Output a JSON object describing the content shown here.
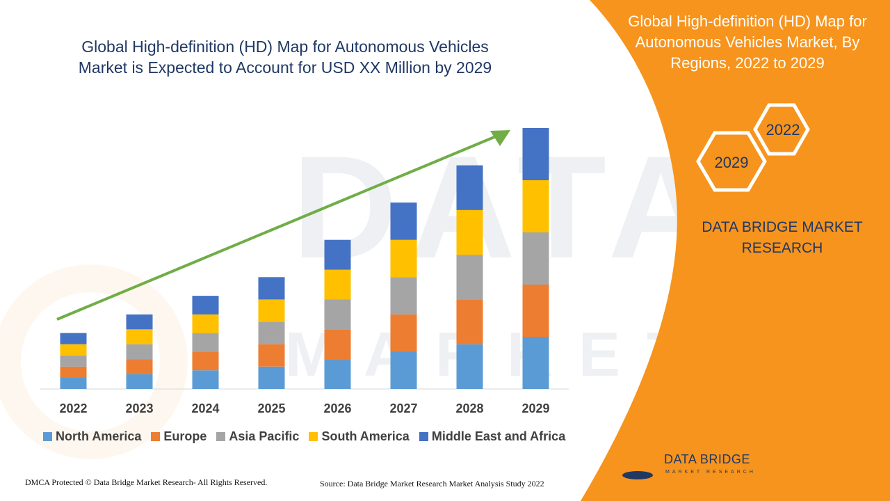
{
  "title": {
    "line1": "Global High-definition (HD) Map for Autonomous Vehicles",
    "line2": "Market is Expected to Account for USD XX Million by 2029"
  },
  "panel": {
    "title": "Global High-definition (HD) Map for Autonomous Vehicles Market, By Regions, 2022 to 2029",
    "hex_year_start": "2022",
    "hex_year_end": "2029",
    "brand_line1": "DATA BRIDGE MARKET",
    "brand_line2": "RESEARCH",
    "accent_color": "#f7941d"
  },
  "footer": {
    "copyright": "DMCA Protected © Data Bridge Market Research- All Rights Reserved.",
    "source": "Source: Data Bridge Market Research Market Analysis Study 2022"
  },
  "logo": {
    "name": "DATA BRIDGE",
    "subtitle": "MARKET RESEARCH"
  },
  "chart_data": {
    "type": "bar",
    "stacked": true,
    "categories": [
      "2022",
      "2023",
      "2024",
      "2025",
      "2026",
      "2027",
      "2028",
      "2029"
    ],
    "series": [
      {
        "name": "North America",
        "color": "#5b9bd5",
        "values": [
          3.0,
          4.0,
          5.0,
          6.0,
          8.0,
          10.0,
          12.0,
          14.0
        ]
      },
      {
        "name": "Europe",
        "color": "#ed7d31",
        "values": [
          3.0,
          4.0,
          5.0,
          6.0,
          8.0,
          10.0,
          12.0,
          14.0
        ]
      },
      {
        "name": "Asia Pacific",
        "color": "#a5a5a5",
        "values": [
          3.0,
          4.0,
          5.0,
          6.0,
          8.0,
          10.0,
          12.0,
          14.0
        ]
      },
      {
        "name": "South America",
        "color": "#ffc000",
        "values": [
          3.0,
          4.0,
          5.0,
          6.0,
          8.0,
          10.0,
          12.0,
          14.0
        ]
      },
      {
        "name": "Middle East and Africa",
        "color": "#4472c4",
        "values": [
          3.0,
          4.0,
          5.0,
          6.0,
          8.0,
          10.0,
          12.0,
          14.0
        ]
      }
    ],
    "ylim": [
      0,
      70
    ],
    "legend_position": "bottom",
    "grid": false,
    "trend_arrow_color": "#70ad47"
  }
}
